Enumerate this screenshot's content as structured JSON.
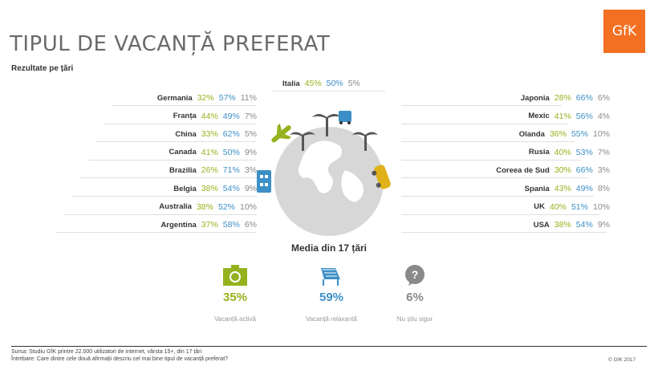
{
  "header": {
    "title": "TIPUL DE VACANȚĂ PREFERAT",
    "subtitle": "Rezultate pe țări",
    "logo": "GfK"
  },
  "colors": {
    "active": "#95b21e",
    "relax": "#3c8fc6",
    "unsure": "#8a8a8a"
  },
  "chart_data": {
    "type": "table",
    "series": [
      {
        "name": "Vacanță activă"
      },
      {
        "name": "Vacanță relaxantă"
      },
      {
        "name": "Nu știu sigur"
      }
    ],
    "top": {
      "country": "Italia",
      "values": [
        "45%",
        "50%",
        "5%"
      ]
    },
    "left": [
      {
        "country": "Germania",
        "values": [
          "32%",
          "57%",
          "11%"
        ]
      },
      {
        "country": "Franța",
        "values": [
          "44%",
          "49%",
          "7%"
        ]
      },
      {
        "country": "China",
        "values": [
          "33%",
          "62%",
          "5%"
        ]
      },
      {
        "country": "Canada",
        "values": [
          "41%",
          "50%",
          "9%"
        ]
      },
      {
        "country": "Brazilia",
        "values": [
          "26%",
          "71%",
          "3%"
        ]
      },
      {
        "country": "Belgia",
        "values": [
          "38%",
          "54%",
          "9%"
        ]
      },
      {
        "country": "Australia",
        "values": [
          "38%",
          "52%",
          "10%"
        ]
      },
      {
        "country": "Argentina",
        "values": [
          "37%",
          "58%",
          "6%"
        ]
      }
    ],
    "right": [
      {
        "country": "Japonia",
        "values": [
          "28%",
          "66%",
          "6%"
        ]
      },
      {
        "country": "Mexic",
        "values": [
          "41%",
          "56%",
          "4%"
        ]
      },
      {
        "country": "Olanda",
        "values": [
          "36%",
          "55%",
          "10%"
        ]
      },
      {
        "country": "Rusia",
        "values": [
          "40%",
          "53%",
          "7%"
        ]
      },
      {
        "country": "Coreea de Sud",
        "values": [
          "30%",
          "66%",
          "3%"
        ]
      },
      {
        "country": "Spania",
        "values": [
          "43%",
          "49%",
          "8%"
        ]
      },
      {
        "country": "UK",
        "values": [
          "40%",
          "51%",
          "10%"
        ]
      },
      {
        "country": "USA",
        "values": [
          "38%",
          "54%",
          "9%"
        ]
      }
    ],
    "average": {
      "title": "Media din 17 țări",
      "items": [
        {
          "icon": "camera-icon",
          "value": "35%",
          "label": "Vacanță activă"
        },
        {
          "icon": "beach-chair-icon",
          "value": "59%",
          "label": "Vacanță relaxantă"
        },
        {
          "icon": "question-bubble-icon",
          "value": "6%",
          "label": "Nu știu sigur"
        }
      ]
    }
  },
  "footer": {
    "source": "Sursa: Studiu GfK printre 22.000 utilizatori de internet, vârsta 15+, din 17 țări",
    "question": "Întrebare: Care dintre cele două afirmații descriu cel mai bine tipul de vacanță preferat?",
    "copyright": "© GfK 2017"
  }
}
